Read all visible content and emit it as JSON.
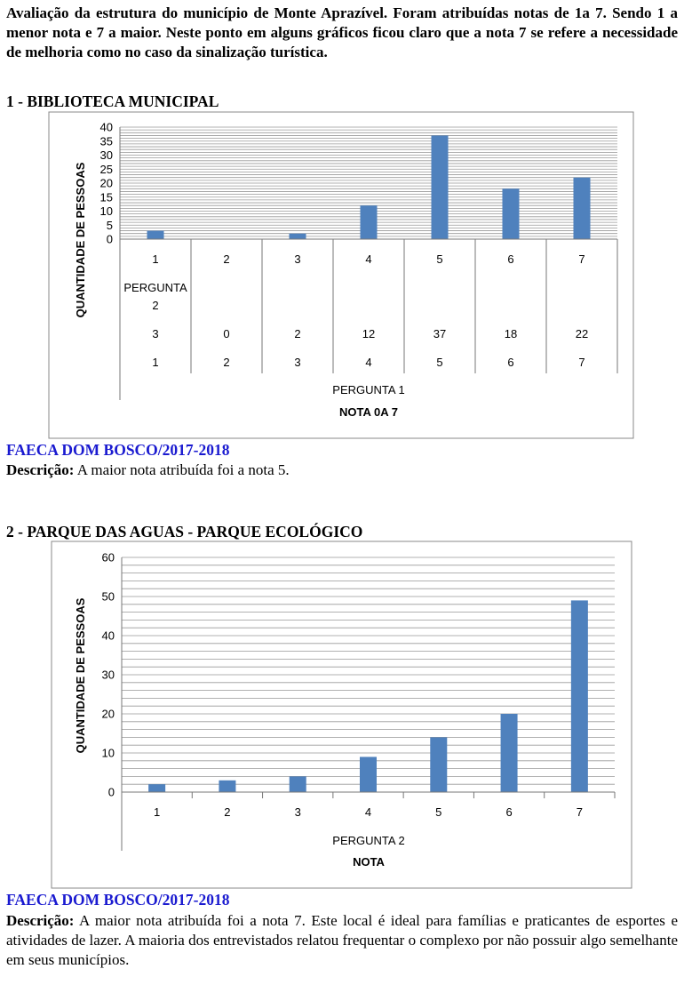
{
  "intro_text": "Avaliação da estrutura do município de Monte Aprazível. Foram atribuídas notas de 1a 7. Sendo 1 a menor nota e 7 a maior. Neste ponto em alguns gráficos ficou claro que a nota 7 se refere a necessidade de melhoria como no caso da sinalização turística.",
  "sections": [
    {
      "title": "1 - BIBLIOTECA MUNICIPAL",
      "source": "FAECA DOM BOSCO/2017-2018",
      "desc_label": "Descrição:",
      "desc_text": " A maior nota atribuída foi a nota 5."
    },
    {
      "title": "2 - PARQUE DAS AGUAS - PARQUE ECOLÓGICO",
      "source": "FAECA DOM BOSCO/2017-2018",
      "desc_label": "Descrição:",
      "desc_text": " A maior nota atribuída foi a nota 7. Este local é ideal para famílias e praticantes de esportes e atividades de lazer. A maioria dos entrevistados relatou frequentar o complexo por não possuir algo semelhante em seus municípios."
    }
  ],
  "chart_data": [
    {
      "type": "bar",
      "categories": [
        "1",
        "2",
        "3",
        "4",
        "5",
        "6",
        "7"
      ],
      "series": [
        {
          "name": "PERGUNTA 2",
          "values": [
            3,
            0,
            2,
            12,
            37,
            18,
            22
          ]
        }
      ],
      "table_row_label": [
        "PERGUNTA",
        "2"
      ],
      "table_row_values": [
        "3",
        "0",
        "2",
        "12",
        "37",
        "18",
        "22"
      ],
      "table_x_values": [
        "1",
        "2",
        "3",
        "4",
        "5",
        "6",
        "7"
      ],
      "xlabel_series": "PERGUNTA 1",
      "xlabel": "NOTA 0A 7",
      "ylabel": "QUANTIDADE DE PESSOAS",
      "ylim": [
        0,
        40
      ],
      "yticks": [
        "0",
        "5",
        "10",
        "15",
        "20",
        "25",
        "30",
        "35",
        "40"
      ],
      "grid": true,
      "bar_color": "#4f81bd"
    },
    {
      "type": "bar",
      "categories": [
        "1",
        "2",
        "3",
        "4",
        "5",
        "6",
        "7"
      ],
      "series": [
        {
          "name": "PERGUNTA 2",
          "values": [
            2,
            3,
            4,
            9,
            14,
            20,
            49
          ]
        }
      ],
      "xlabel_series": "PERGUNTA 2",
      "xlabel": "NOTA",
      "ylabel": "QUANTIDADE DE PESSOAS",
      "ylim": [
        0,
        60
      ],
      "yticks": [
        "0",
        "10",
        "20",
        "30",
        "40",
        "50",
        "60"
      ],
      "grid": true,
      "bar_color": "#4f81bd"
    }
  ]
}
